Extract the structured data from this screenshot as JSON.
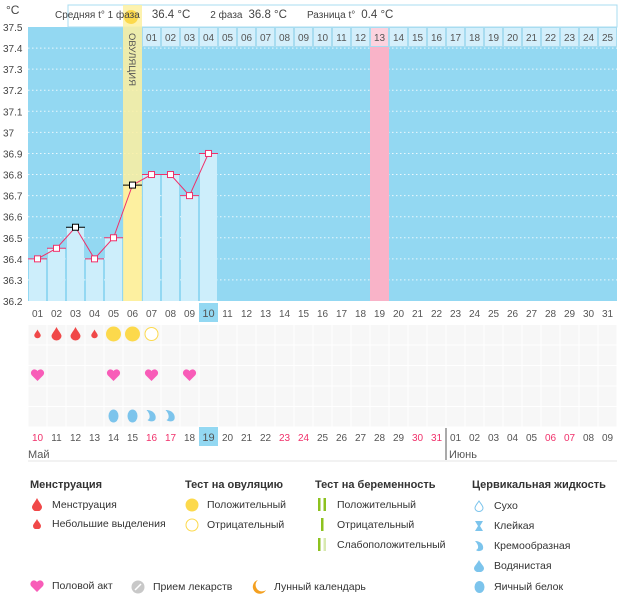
{
  "chart_data": {
    "type": "line",
    "ylabel": "°C",
    "ylim": [
      36.2,
      37.5
    ],
    "yticks": [
      "37.5",
      "37.4",
      "37.3",
      "37.2",
      "37.1",
      "37",
      "36.9",
      "36.8",
      "36.7",
      "36.6",
      "36.5",
      "36.4",
      "36.3",
      "36.2"
    ],
    "cycle_days": [
      "01",
      "02",
      "03",
      "04",
      "05",
      "06",
      "07",
      "08",
      "09",
      "10",
      "11",
      "12",
      "13",
      "14",
      "15",
      "16",
      "17",
      "18",
      "19",
      "20",
      "21",
      "22",
      "23",
      "24",
      "25",
      "26",
      "27",
      "28",
      "29",
      "30",
      "31"
    ],
    "current_cycle_day": "10",
    "temperatures": [
      36.4,
      36.45,
      36.55,
      36.4,
      36.5,
      36.75,
      36.8,
      36.8,
      36.7,
      36.9
    ],
    "excluded_points_days": [
      "03",
      "06"
    ],
    "ovulation_day": "06",
    "ovulation_label": "ОВУЛЯЦИЯ",
    "luteal_days": [
      "01",
      "02",
      "03",
      "04",
      "05",
      "06",
      "07",
      "08",
      "09",
      "10",
      "11",
      "12",
      "13",
      "14",
      "15",
      "16",
      "17",
      "18",
      "19",
      "20",
      "21",
      "22",
      "23",
      "24",
      "25"
    ],
    "highlight_luteal_day": "13",
    "moon_day": "12",
    "calendar_dates": [
      "10",
      "11",
      "12",
      "13",
      "14",
      "15",
      "16",
      "17",
      "18",
      "19",
      "20",
      "21",
      "22",
      "23",
      "24",
      "25",
      "26",
      "27",
      "28",
      "29",
      "30",
      "31",
      "01",
      "02",
      "03",
      "04",
      "05",
      "06",
      "07",
      "08",
      "09"
    ],
    "weekend_dates_idx": [
      0,
      6,
      7,
      13,
      14,
      20,
      21,
      27,
      28
    ],
    "today_idx": 9,
    "months": [
      "Май",
      "Июнь"
    ],
    "menstruation_row": [
      "small",
      "big",
      "big",
      "small"
    ],
    "ovulation_test_row": {
      "5": "positive",
      "6": "positive",
      "7": "negative"
    },
    "intercourse_days": [
      "01",
      "05",
      "07",
      "09"
    ],
    "cervical_row": {
      "5": "egg-white",
      "6": "egg-white",
      "7": "creamy",
      "8": "creamy"
    }
  },
  "summary": {
    "phase1_label": "Средняя t° 1 фаза",
    "phase1_value": "36.4 °C",
    "phase2_label": "2 фаза",
    "phase2_value": "36.8 °C",
    "diff_label": "Разница t°",
    "diff_value": "0.4 °C"
  },
  "colors": {
    "bg": "#93d8f2",
    "bar": "#cdeefb",
    "ovulation": "#fdf0a0",
    "line": "#f0306a",
    "pink": "#f9b3c8",
    "weekend": "#f0306a"
  },
  "legend": {
    "menstruation": {
      "title": "Менструация",
      "items": [
        "Менструация",
        "Небольшие выделения"
      ]
    },
    "ovulation_test": {
      "title": "Тест на овуляцию",
      "items": [
        "Положительный",
        "Отрицательный"
      ]
    },
    "pregnancy_test": {
      "title": "Тест на беременность",
      "items": [
        "Положительный",
        "Отрицательный",
        "Слабоположительный"
      ]
    },
    "cervical": {
      "title": "Цервикальная жидкость",
      "items": [
        "Сухо",
        "Клейкая",
        "Кремообразная",
        "Водянистая",
        "Яичный белок"
      ]
    },
    "other": [
      "Половой акт",
      "Прием лекарств",
      "Лунный календарь"
    ]
  }
}
